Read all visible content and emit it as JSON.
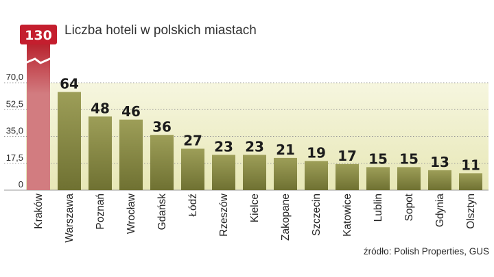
{
  "chart_data": {
    "type": "bar",
    "title": "Liczba hoteli w polskich miastach",
    "categories": [
      "Kraków",
      "Warszawa",
      "Poznań",
      "Wrocław",
      "Gdańsk",
      "Łódź",
      "Rzeszów",
      "Kielce",
      "Zakopane",
      "Szczecin",
      "Katowice",
      "Lublin",
      "Sopot",
      "Gdynia",
      "Olsztyn"
    ],
    "values": [
      130,
      64,
      48,
      46,
      36,
      27,
      23,
      23,
      21,
      19,
      17,
      15,
      15,
      13,
      11
    ],
    "value_labels": [
      "130",
      "64",
      "48",
      "46",
      "36",
      "27",
      "23",
      "23",
      "21",
      "19",
      "17",
      "15",
      "15",
      "13",
      "11"
    ],
    "ylim": [
      0,
      70
    ],
    "yticks": [
      0,
      17.5,
      35,
      52.5,
      70
    ],
    "ytick_labels": [
      "0",
      "17,5",
      "35,0",
      "52,5",
      "70,0"
    ],
    "axis_break_category": "Kraków",
    "grid": true,
    "source": "źródło: Polish Properties, GUS",
    "colors": {
      "highlight_bar": "#d27c80",
      "highlight_bar_top": "#b8202c",
      "badge": "#c41e2e",
      "bar_light": "#9d9e58",
      "bar_dark": "#6f7132",
      "band_light": "#f6f6df",
      "band_dark": "#e7e7b6",
      "grid": "#999999"
    }
  }
}
